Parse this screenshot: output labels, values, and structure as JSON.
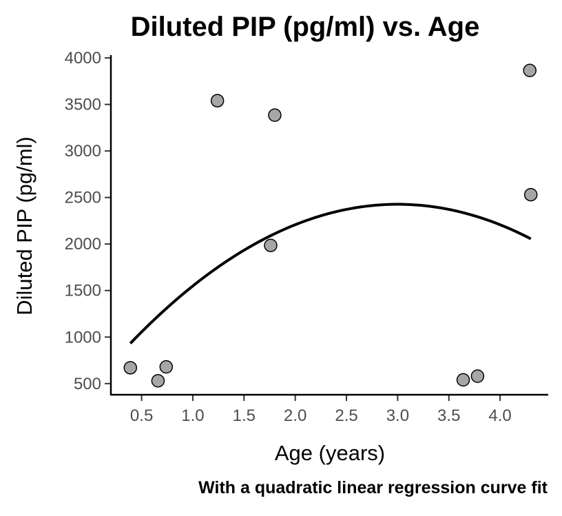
{
  "chart_data": {
    "type": "scatter",
    "title": "Diluted PIP (pg/ml) vs. Age",
    "caption": "With a quadratic linear regression curve fit",
    "xlabel": "Age (years)",
    "ylabel": "Diluted PIP (pg/ml)",
    "xlim": [
      0.2,
      4.47
    ],
    "ylim": [
      380,
      4030
    ],
    "x_ticks": [
      0.5,
      1.0,
      1.5,
      2.0,
      2.5,
      3.0,
      3.5,
      4.0
    ],
    "x_tick_labels": [
      "0.5",
      "1.0",
      "1.5",
      "2.0",
      "2.5",
      "3.0",
      "3.5",
      "4.0"
    ],
    "y_ticks": [
      500,
      1000,
      1500,
      2000,
      2500,
      3000,
      3500,
      4000
    ],
    "y_tick_labels": [
      "500",
      "1000",
      "1500",
      "2000",
      "2500",
      "3000",
      "3500",
      "4000"
    ],
    "grid": false,
    "points": [
      {
        "x": 0.39,
        "y": 670
      },
      {
        "x": 0.66,
        "y": 530
      },
      {
        "x": 0.74,
        "y": 680
      },
      {
        "x": 1.24,
        "y": 3540
      },
      {
        "x": 1.76,
        "y": 1985
      },
      {
        "x": 1.8,
        "y": 3385
      },
      {
        "x": 3.64,
        "y": 540
      },
      {
        "x": 3.78,
        "y": 580
      },
      {
        "x": 4.29,
        "y": 3865
      },
      {
        "x": 4.3,
        "y": 2530
      }
    ],
    "fit": {
      "type": "quadratic",
      "x_range": [
        0.39,
        4.3
      ],
      "curve": [
        {
          "x": 0.39,
          "y": 955
        },
        {
          "x": 1.0,
          "y": 1530
        },
        {
          "x": 1.5,
          "y": 1915
        },
        {
          "x": 2.0,
          "y": 2195
        },
        {
          "x": 2.5,
          "y": 2375
        },
        {
          "x": 2.95,
          "y": 2450
        },
        {
          "x": 3.5,
          "y": 2390
        },
        {
          "x": 4.0,
          "y": 2210
        },
        {
          "x": 4.3,
          "y": 2035
        }
      ]
    },
    "colors": {
      "point_fill": "#a6a6a6",
      "point_stroke": "#000000",
      "fit_line": "#000000"
    }
  }
}
